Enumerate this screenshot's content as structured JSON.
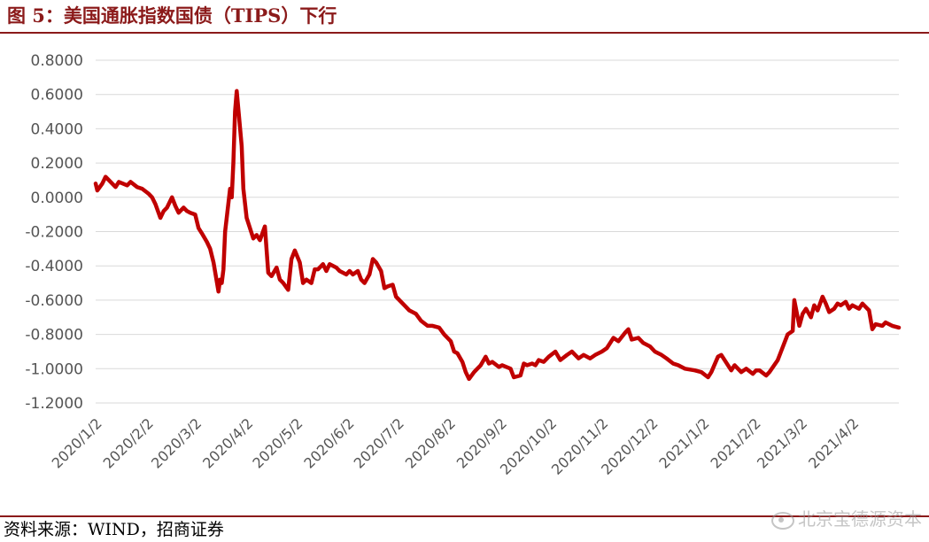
{
  "header": {
    "title": "图 5：美国通胀指数国债（TIPS）下行"
  },
  "footer": {
    "source": "资料来源：WIND，招商证券"
  },
  "watermark": {
    "text": "北京宝德源资本",
    "icon": "weibo-icon"
  },
  "colors": {
    "line": "#c00000",
    "rule": "#8b1a1a",
    "grid": "#d9d9d9",
    "tick": "#555555"
  },
  "chart_data": {
    "type": "line",
    "title": "",
    "xlabel": "",
    "ylabel": "",
    "ylim": [
      -1.2,
      0.8
    ],
    "grid": "horizontal",
    "legend": "none",
    "yticks": [
      "0.8000",
      "0.6000",
      "0.4000",
      "0.2000",
      "0.0000",
      "-0.2000",
      "-0.4000",
      "-0.6000",
      "-0.8000",
      "-1.0000",
      "-1.2000"
    ],
    "xticks": [
      "2020/1/2",
      "2020/2/2",
      "2020/3/2",
      "2020/4/2",
      "2020/5/2",
      "2020/6/2",
      "2020/7/2",
      "2020/8/2",
      "2020/9/2",
      "2020/10/2",
      "2020/11/2",
      "2020/12/2",
      "2021/1/2",
      "2021/2/2",
      "2021/3/2",
      "2021/4/2"
    ],
    "x_range": [
      "2020/1/2",
      "2021/4/30"
    ],
    "series": [
      {
        "color": "#c00000",
        "points": [
          [
            "2020/1/2",
            0.08
          ],
          [
            "2020/1/3",
            0.04
          ],
          [
            "2020/1/6",
            0.08
          ],
          [
            "2020/1/8",
            0.12
          ],
          [
            "2020/1/10",
            0.1
          ],
          [
            "2020/1/14",
            0.06
          ],
          [
            "2020/1/16",
            0.09
          ],
          [
            "2020/1/21",
            0.07
          ],
          [
            "2020/1/23",
            0.09
          ],
          [
            "2020/1/27",
            0.06
          ],
          [
            "2020/1/30",
            0.05
          ],
          [
            "2020/2/3",
            0.02
          ],
          [
            "2020/2/5",
            0.0
          ],
          [
            "2020/2/7",
            -0.04
          ],
          [
            "2020/2/10",
            -0.12
          ],
          [
            "2020/2/12",
            -0.08
          ],
          [
            "2020/2/14",
            -0.06
          ],
          [
            "2020/2/17",
            0.0
          ],
          [
            "2020/2/19",
            -0.05
          ],
          [
            "2020/2/21",
            -0.09
          ],
          [
            "2020/2/24",
            -0.06
          ],
          [
            "2020/2/26",
            -0.08
          ],
          [
            "2020/2/28",
            -0.09
          ],
          [
            "2020/3/2",
            -0.1
          ],
          [
            "2020/3/4",
            -0.18
          ],
          [
            "2020/3/6",
            -0.21
          ],
          [
            "2020/3/9",
            -0.26
          ],
          [
            "2020/3/11",
            -0.3
          ],
          [
            "2020/3/13",
            -0.38
          ],
          [
            "2020/3/16",
            -0.55
          ],
          [
            "2020/3/17",
            -0.48
          ],
          [
            "2020/3/18",
            -0.5
          ],
          [
            "2020/3/19",
            -0.42
          ],
          [
            "2020/3/20",
            -0.2
          ],
          [
            "2020/3/23",
            0.05
          ],
          [
            "2020/3/24",
            0.0
          ],
          [
            "2020/3/25",
            0.2
          ],
          [
            "2020/3/26",
            0.5
          ],
          [
            "2020/3/27",
            0.62
          ],
          [
            "2020/3/30",
            0.3
          ],
          [
            "2020/3/31",
            0.05
          ],
          [
            "2020/4/2",
            -0.12
          ],
          [
            "2020/4/6",
            -0.24
          ],
          [
            "2020/4/8",
            -0.22
          ],
          [
            "2020/4/10",
            -0.25
          ],
          [
            "2020/4/13",
            -0.17
          ],
          [
            "2020/4/15",
            -0.44
          ],
          [
            "2020/4/17",
            -0.46
          ],
          [
            "2020/4/20",
            -0.41
          ],
          [
            "2020/4/22",
            -0.48
          ],
          [
            "2020/4/24",
            -0.5
          ],
          [
            "2020/4/27",
            -0.54
          ],
          [
            "2020/4/29",
            -0.36
          ],
          [
            "2020/5/1",
            -0.31
          ],
          [
            "2020/5/4",
            -0.38
          ],
          [
            "2020/5/6",
            -0.5
          ],
          [
            "2020/5/8",
            -0.48
          ],
          [
            "2020/5/11",
            -0.5
          ],
          [
            "2020/5/13",
            -0.42
          ],
          [
            "2020/5/15",
            -0.42
          ],
          [
            "2020/5/18",
            -0.39
          ],
          [
            "2020/5/20",
            -0.43
          ],
          [
            "2020/5/22",
            -0.39
          ],
          [
            "2020/5/26",
            -0.41
          ],
          [
            "2020/5/28",
            -0.43
          ],
          [
            "2020/6/1",
            -0.45
          ],
          [
            "2020/6/3",
            -0.43
          ],
          [
            "2020/6/5",
            -0.45
          ],
          [
            "2020/6/8",
            -0.43
          ],
          [
            "2020/6/10",
            -0.48
          ],
          [
            "2020/6/12",
            -0.5
          ],
          [
            "2020/6/15",
            -0.45
          ],
          [
            "2020/6/17",
            -0.36
          ],
          [
            "2020/6/19",
            -0.38
          ],
          [
            "2020/6/22",
            -0.43
          ],
          [
            "2020/6/24",
            -0.53
          ],
          [
            "2020/6/26",
            -0.52
          ],
          [
            "2020/6/29",
            -0.51
          ],
          [
            "2020/7/1",
            -0.58
          ],
          [
            "2020/7/6",
            -0.63
          ],
          [
            "2020/7/9",
            -0.66
          ],
          [
            "2020/7/13",
            -0.68
          ],
          [
            "2020/7/16",
            -0.72
          ],
          [
            "2020/7/20",
            -0.75
          ],
          [
            "2020/7/23",
            -0.75
          ],
          [
            "2020/7/27",
            -0.76
          ],
          [
            "2020/7/30",
            -0.8
          ],
          [
            "2020/8/3",
            -0.84
          ],
          [
            "2020/8/5",
            -0.9
          ],
          [
            "2020/8/7",
            -0.91
          ],
          [
            "2020/8/10",
            -0.96
          ],
          [
            "2020/8/12",
            -1.02
          ],
          [
            "2020/8/14",
            -1.06
          ],
          [
            "2020/8/17",
            -1.02
          ],
          [
            "2020/8/19",
            -1.0
          ],
          [
            "2020/8/21",
            -0.98
          ],
          [
            "2020/8/24",
            -0.93
          ],
          [
            "2020/8/26",
            -0.97
          ],
          [
            "2020/8/28",
            -0.96
          ],
          [
            "2020/9/1",
            -0.99
          ],
          [
            "2020/9/3",
            -0.98
          ],
          [
            "2020/9/8",
            -1.0
          ],
          [
            "2020/9/10",
            -1.05
          ],
          [
            "2020/9/14",
            -1.04
          ],
          [
            "2020/9/16",
            -0.97
          ],
          [
            "2020/9/18",
            -0.98
          ],
          [
            "2020/9/21",
            -0.97
          ],
          [
            "2020/9/23",
            -0.98
          ],
          [
            "2020/9/25",
            -0.95
          ],
          [
            "2020/9/28",
            -0.96
          ],
          [
            "2020/10/1",
            -0.93
          ],
          [
            "2020/10/5",
            -0.9
          ],
          [
            "2020/10/8",
            -0.95
          ],
          [
            "2020/10/12",
            -0.92
          ],
          [
            "2020/10/15",
            -0.9
          ],
          [
            "2020/10/19",
            -0.94
          ],
          [
            "2020/10/22",
            -0.92
          ],
          [
            "2020/10/26",
            -0.94
          ],
          [
            "2020/10/29",
            -0.92
          ],
          [
            "2020/11/2",
            -0.9
          ],
          [
            "2020/11/5",
            -0.88
          ],
          [
            "2020/11/9",
            -0.82
          ],
          [
            "2020/11/12",
            -0.84
          ],
          [
            "2020/11/16",
            -0.79
          ],
          [
            "2020/11/18",
            -0.77
          ],
          [
            "2020/11/20",
            -0.83
          ],
          [
            "2020/11/24",
            -0.82
          ],
          [
            "2020/11/27",
            -0.85
          ],
          [
            "2020/12/1",
            -0.87
          ],
          [
            "2020/12/4",
            -0.9
          ],
          [
            "2020/12/8",
            -0.92
          ],
          [
            "2020/12/11",
            -0.94
          ],
          [
            "2020/12/15",
            -0.97
          ],
          [
            "2020/12/18",
            -0.98
          ],
          [
            "2020/12/22",
            -1.0
          ],
          [
            "2020/12/28",
            -1.01
          ],
          [
            "2021/1/1",
            -1.02
          ],
          [
            "2021/1/5",
            -1.05
          ],
          [
            "2021/1/7",
            -1.02
          ],
          [
            "2021/1/11",
            -0.93
          ],
          [
            "2021/1/13",
            -0.92
          ],
          [
            "2021/1/15",
            -0.95
          ],
          [
            "2021/1/19",
            -1.01
          ],
          [
            "2021/1/21",
            -0.98
          ],
          [
            "2021/1/25",
            -1.02
          ],
          [
            "2021/1/28",
            -1.0
          ],
          [
            "2021/2/1",
            -1.03
          ],
          [
            "2021/2/3",
            -1.01
          ],
          [
            "2021/2/5",
            -1.01
          ],
          [
            "2021/2/9",
            -1.04
          ],
          [
            "2021/2/11",
            -1.02
          ],
          [
            "2021/2/16",
            -0.95
          ],
          [
            "2021/2/18",
            -0.9
          ],
          [
            "2021/2/22",
            -0.8
          ],
          [
            "2021/2/25",
            -0.78
          ],
          [
            "2021/2/26",
            -0.6
          ],
          [
            "2021/3/1",
            -0.75
          ],
          [
            "2021/3/3",
            -0.68
          ],
          [
            "2021/3/5",
            -0.65
          ],
          [
            "2021/3/8",
            -0.7
          ],
          [
            "2021/3/10",
            -0.63
          ],
          [
            "2021/3/12",
            -0.66
          ],
          [
            "2021/3/15",
            -0.58
          ],
          [
            "2021/3/17",
            -0.62
          ],
          [
            "2021/3/19",
            -0.67
          ],
          [
            "2021/3/22",
            -0.65
          ],
          [
            "2021/3/24",
            -0.62
          ],
          [
            "2021/3/26",
            -0.63
          ],
          [
            "2021/3/29",
            -0.61
          ],
          [
            "2021/3/31",
            -0.65
          ],
          [
            "2021/4/2",
            -0.63
          ],
          [
            "2021/4/6",
            -0.65
          ],
          [
            "2021/4/8",
            -0.62
          ],
          [
            "2021/4/12",
            -0.66
          ],
          [
            "2021/4/14",
            -0.77
          ],
          [
            "2021/4/16",
            -0.74
          ],
          [
            "2021/4/20",
            -0.75
          ],
          [
            "2021/4/22",
            -0.73
          ],
          [
            "2021/4/26",
            -0.75
          ],
          [
            "2021/4/30",
            -0.76
          ]
        ]
      }
    ]
  }
}
